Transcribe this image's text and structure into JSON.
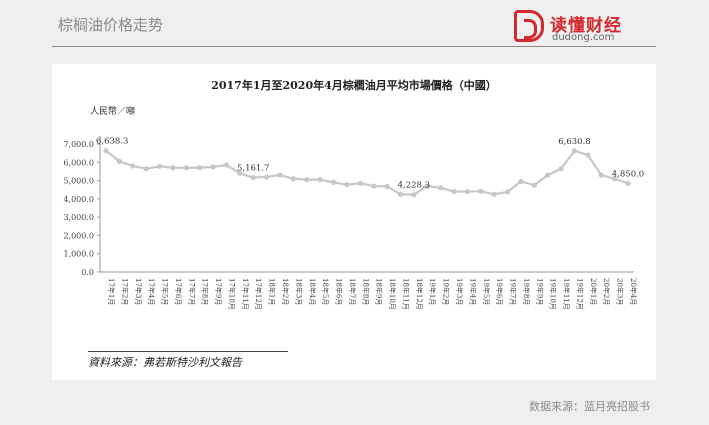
{
  "header": {
    "title": "棕榈油价格走势"
  },
  "brand": {
    "name": "读懂财经",
    "domain": "dudong.com",
    "color": "#d3282d"
  },
  "footer": {
    "source": "数据来源：蓝月亮招股书"
  },
  "chart_data": {
    "type": "line",
    "title": "2017年1月至2020年4月棕櫚油月平均市場價格（中國）",
    "ylabel": "人民幣／噸",
    "ylim": [
      0,
      7000
    ],
    "yticks": [
      "0.0",
      "1,000.0",
      "2,000.0",
      "3,000.0",
      "4,000.0",
      "5,000.0",
      "6,000.0",
      "7,000.0"
    ],
    "grid": false,
    "line_color": "#c7c7c7",
    "marker_color": "#c7c7c7",
    "x": [
      "17年1月",
      "17年2月",
      "17年3月",
      "17年4月",
      "17年5月",
      "17年6月",
      "17年7月",
      "17年8月",
      "17年9月",
      "17年10月",
      "17年11月",
      "17年12月",
      "18年1月",
      "18年2月",
      "18年3月",
      "18年4月",
      "18年5月",
      "18年6月",
      "18年7月",
      "18年8月",
      "18年9月",
      "18年10月",
      "18年11月",
      "18年12月",
      "19年1月",
      "19年2月",
      "19年3月",
      "19年4月",
      "19年5月",
      "19年6月",
      "19年7月",
      "19年8月",
      "19年9月",
      "19年10月",
      "19年11月",
      "19年12月",
      "20年1月",
      "20年2月",
      "20年3月",
      "20年4月"
    ],
    "series": [
      {
        "values": [
          6638.3,
          6050,
          5800,
          5650,
          5780,
          5700,
          5700,
          5700,
          5750,
          5850,
          5400,
          5161.7,
          5200,
          5300,
          5100,
          5050,
          5050,
          4900,
          4780,
          4850,
          4700,
          4680,
          4250,
          4228.3,
          4700,
          4600,
          4400,
          4400,
          4420,
          4250,
          4380,
          4950,
          4750,
          5300,
          5650,
          6630.8,
          6400,
          5300,
          5100,
          4850.0
        ]
      }
    ],
    "annotations": [
      {
        "index": 0,
        "label": "6,638.3"
      },
      {
        "index": 11,
        "label": "5,161.7"
      },
      {
        "index": 23,
        "label": "4,228.3"
      },
      {
        "index": 35,
        "label": "6,630.8"
      },
      {
        "index": 39,
        "label": "4,850.0"
      }
    ],
    "source_note": "資料來源：弗若斯特沙利文報告"
  }
}
